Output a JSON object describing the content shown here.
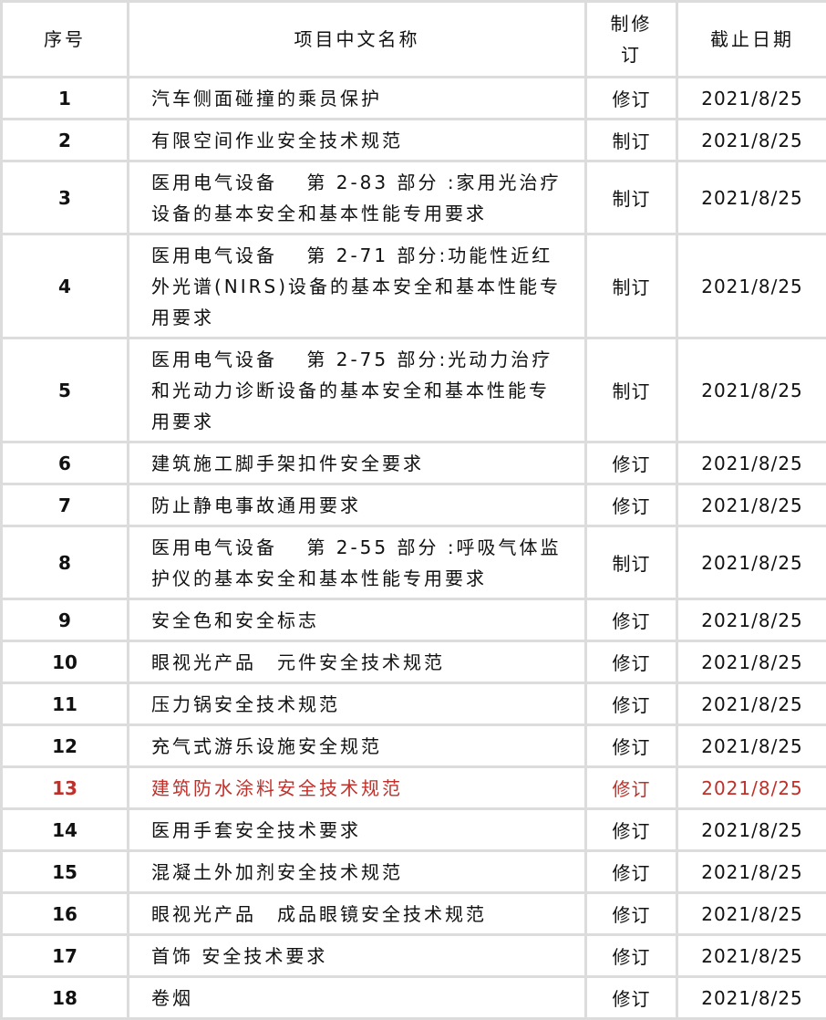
{
  "header": {
    "index": "序号",
    "name": "项目中文名称",
    "type": "制修订",
    "deadline": "截止日期"
  },
  "highlight_color": "#c0302a",
  "rows": [
    {
      "index": "1",
      "name": "汽车侧面碰撞的乘员保护",
      "type": "修订",
      "deadline": "2021/8/25"
    },
    {
      "index": "2",
      "name": "有限空间作业安全技术规范",
      "type": "制订",
      "deadline": "2021/8/25"
    },
    {
      "index": "3",
      "name": "医用电气设备　 第 2-83 部分 :家用光治疗设备的基本安全和基本性能专用要求",
      "type": "制订",
      "deadline": "2021/8/25"
    },
    {
      "index": "4",
      "name": "医用电气设备　 第 2-71 部分:功能性近红外光谱(NIRS)设备的基本安全和基本性能专用要求",
      "type": "制订",
      "deadline": "2021/8/25"
    },
    {
      "index": "5",
      "name": "医用电气设备　 第 2-75 部分:光动力治疗和光动力诊断设备的基本安全和基本性能专用要求",
      "type": "制订",
      "deadline": "2021/8/25"
    },
    {
      "index": "6",
      "name": "建筑施工脚手架扣件安全要求",
      "type": "修订",
      "deadline": "2021/8/25"
    },
    {
      "index": "7",
      "name": "防止静电事故通用要求",
      "type": "修订",
      "deadline": "2021/8/25"
    },
    {
      "index": "8",
      "name": "医用电气设备　 第 2-55 部分 :呼吸气体监护仪的基本安全和基本性能专用要求",
      "type": "制订",
      "deadline": "2021/8/25"
    },
    {
      "index": "9",
      "name": "安全色和安全标志",
      "type": "修订",
      "deadline": "2021/8/25"
    },
    {
      "index": "10",
      "name": "眼视光产品　元件安全技术规范",
      "type": "修订",
      "deadline": "2021/8/25"
    },
    {
      "index": "11",
      "name": "压力锅安全技术规范",
      "type": "修订",
      "deadline": "2021/8/25"
    },
    {
      "index": "12",
      "name": "充气式游乐设施安全规范",
      "type": "修订",
      "deadline": "2021/8/25"
    },
    {
      "index": "13",
      "name": "建筑防水涂料安全技术规范",
      "type": "修订",
      "deadline": "2021/8/25",
      "highlighted": true
    },
    {
      "index": "14",
      "name": "医用手套安全技术要求",
      "type": "修订",
      "deadline": "2021/8/25"
    },
    {
      "index": "15",
      "name": "混凝土外加剂安全技术规范",
      "type": "修订",
      "deadline": "2021/8/25"
    },
    {
      "index": "16",
      "name": "眼视光产品　成品眼镜安全技术规范",
      "type": "修订",
      "deadline": "2021/8/25"
    },
    {
      "index": "17",
      "name": "首饰 安全技术要求",
      "type": "修订",
      "deadline": "2021/8/25"
    },
    {
      "index": "18",
      "name": "卷烟",
      "type": "修订",
      "deadline": "2021/8/25"
    }
  ]
}
